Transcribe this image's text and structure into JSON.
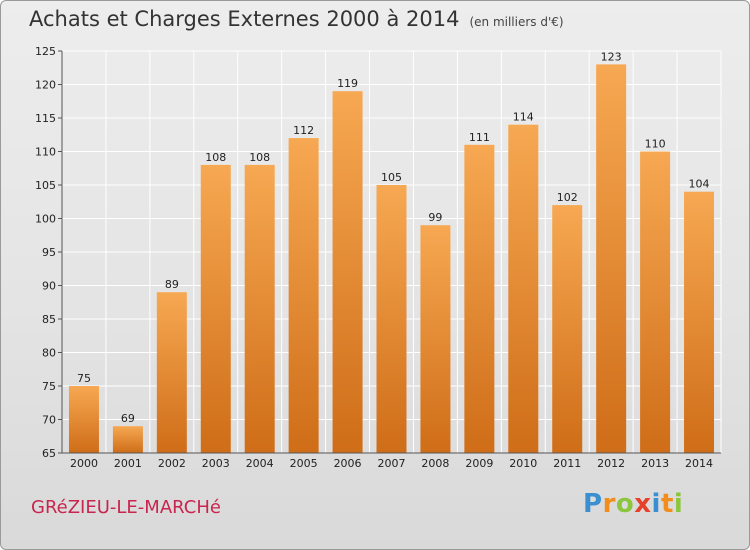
{
  "header": {
    "title": "Achats et Charges Externes 2000 à 2014",
    "subtitle": "(en milliers d'€)"
  },
  "footer": {
    "commune": "GRéZIEU-LE-MARCHé",
    "brand": [
      "P",
      "r",
      "o",
      "x",
      "i",
      "t",
      "i"
    ],
    "brand_colors": [
      "#3a8fd3",
      "#f28c1a",
      "#8cc63f",
      "#e6412a",
      "#3a8fd3",
      "#f28c1a",
      "#8cc63f"
    ]
  },
  "colors": {
    "bar_light": "#f7a852",
    "bar_dark": "#cf6d18",
    "commune": "#c8264e"
  },
  "chart_data": {
    "type": "bar",
    "categories": [
      "2000",
      "2001",
      "2002",
      "2003",
      "2004",
      "2005",
      "2006",
      "2007",
      "2008",
      "2009",
      "2010",
      "2011",
      "2012",
      "2013",
      "2014"
    ],
    "values": [
      75,
      69,
      89,
      108,
      108,
      112,
      119,
      105,
      99,
      111,
      114,
      102,
      123,
      110,
      104
    ],
    "title": "Achats et Charges Externes 2000 à 2014",
    "subtitle": "(en milliers d'€)",
    "ylim": [
      65,
      125
    ],
    "yticks": [
      65,
      70,
      75,
      80,
      85,
      90,
      95,
      100,
      105,
      110,
      115,
      120,
      125
    ],
    "grid": true,
    "data_labels": true
  }
}
